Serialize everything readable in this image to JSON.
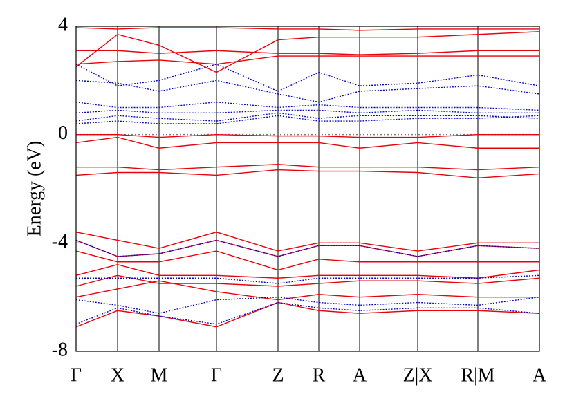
{
  "chart_data": {
    "type": "line",
    "ylabel": "Energy (eV)",
    "x": [
      0,
      0.6,
      1.2,
      2.03,
      2.92,
      3.51,
      4.1,
      4.94,
      5.81,
      6.7
    ],
    "xlim": [
      0,
      6.7
    ],
    "xticks": [
      {
        "value": 0,
        "label": "Γ"
      },
      {
        "value": 0.6,
        "label": "X"
      },
      {
        "value": 1.2,
        "label": "M"
      },
      {
        "value": 2.03,
        "label": "Γ"
      },
      {
        "value": 2.92,
        "label": "Z"
      },
      {
        "value": 3.51,
        "label": "R"
      },
      {
        "value": 4.1,
        "label": "A"
      },
      {
        "value": 4.94,
        "label": "Z|X"
      },
      {
        "value": 5.81,
        "label": "R|M"
      },
      {
        "value": 6.7,
        "label": "A"
      }
    ],
    "ylim": [
      -8,
      4
    ],
    "yticks": [
      -8,
      -4,
      0,
      4
    ],
    "grid": true,
    "hline": 0,
    "hline_color": "#808080",
    "series": [
      {
        "color": "#e8000b",
        "dashed": false,
        "values": [
          3.95,
          3.9,
          3.95,
          3.95,
          3.9,
          3.9,
          3.85,
          3.9,
          3.9,
          3.9
        ]
      },
      {
        "color": "#e8000b",
        "dashed": false,
        "values": [
          2.5,
          3.7,
          3.3,
          2.3,
          3.5,
          3.6,
          3.6,
          3.6,
          3.7,
          3.8
        ]
      },
      {
        "color": "#e8000b",
        "dashed": false,
        "values": [
          3.1,
          3.1,
          3.0,
          3.1,
          3.0,
          3.0,
          2.95,
          3.0,
          3.1,
          3.1
        ]
      },
      {
        "color": "#e8000b",
        "dashed": false,
        "values": [
          2.6,
          2.7,
          2.75,
          2.6,
          2.9,
          2.9,
          2.9,
          2.9,
          2.9,
          2.9
        ]
      },
      {
        "color": "#e8000b",
        "dashed": false,
        "values": [
          0.0,
          0.0,
          -0.1,
          0.0,
          -0.05,
          -0.05,
          -0.1,
          -0.1,
          0.0,
          0.0
        ]
      },
      {
        "color": "#e8000b",
        "dashed": false,
        "values": [
          -0.3,
          -0.1,
          -0.5,
          -0.3,
          -0.3,
          -0.3,
          -0.5,
          -0.3,
          -0.5,
          -0.5
        ]
      },
      {
        "color": "#e8000b",
        "dashed": false,
        "values": [
          -1.2,
          -1.2,
          -1.3,
          -1.2,
          -1.1,
          -1.2,
          -1.2,
          -1.2,
          -1.3,
          -1.2
        ]
      },
      {
        "color": "#e8000b",
        "dashed": false,
        "values": [
          -1.5,
          -1.4,
          -1.4,
          -1.5,
          -1.3,
          -1.35,
          -1.35,
          -1.4,
          -1.6,
          -1.45
        ]
      },
      {
        "color": "#e8000b",
        "dashed": false,
        "values": [
          -3.6,
          -3.9,
          -4.2,
          -3.6,
          -4.3,
          -4.0,
          -4.0,
          -4.3,
          -4.0,
          -4.0
        ]
      },
      {
        "color": "#e8000b",
        "dashed": false,
        "values": [
          -3.9,
          -4.5,
          -4.4,
          -3.9,
          -4.5,
          -4.1,
          -4.1,
          -4.5,
          -4.1,
          -4.2
        ]
      },
      {
        "color": "#e8000b",
        "dashed": false,
        "values": [
          -4.3,
          -4.7,
          -4.7,
          -4.3,
          -5.0,
          -4.6,
          -4.7,
          -4.7,
          -4.7,
          -4.7
        ]
      },
      {
        "color": "#e8000b",
        "dashed": false,
        "values": [
          -5.2,
          -4.8,
          -5.2,
          -5.2,
          -5.3,
          -5.2,
          -5.2,
          -5.2,
          -5.3,
          -5.0
        ]
      },
      {
        "color": "#e8000b",
        "dashed": false,
        "values": [
          -5.6,
          -5.2,
          -5.5,
          -5.5,
          -5.6,
          -5.5,
          -5.4,
          -5.4,
          -5.5,
          -5.3
        ]
      },
      {
        "color": "#e8000b",
        "dashed": false,
        "values": [
          -6.0,
          -5.7,
          -5.4,
          -5.8,
          -6.1,
          -5.9,
          -6.0,
          -5.9,
          -6.0,
          -6.0
        ]
      },
      {
        "color": "#e8000b",
        "dashed": false,
        "values": [
          -7.1,
          -6.5,
          -6.7,
          -7.1,
          -6.2,
          -6.5,
          -6.6,
          -6.5,
          -6.5,
          -6.6
        ]
      },
      {
        "color": "#0000dd",
        "dashed": true,
        "values": [
          2.6,
          1.8,
          2.0,
          2.6,
          1.6,
          2.3,
          1.8,
          1.9,
          2.2,
          1.8
        ]
      },
      {
        "color": "#0000dd",
        "dashed": true,
        "values": [
          2.0,
          1.9,
          1.6,
          2.0,
          1.5,
          1.2,
          1.6,
          1.7,
          1.8,
          1.5
        ]
      },
      {
        "color": "#0000dd",
        "dashed": true,
        "values": [
          1.2,
          1.0,
          1.0,
          1.2,
          1.0,
          1.1,
          1.0,
          1.0,
          1.0,
          0.9
        ]
      },
      {
        "color": "#0000dd",
        "dashed": true,
        "values": [
          0.8,
          0.9,
          0.8,
          0.8,
          0.9,
          0.9,
          0.8,
          0.9,
          0.8,
          0.8
        ]
      },
      {
        "color": "#0000dd",
        "dashed": true,
        "values": [
          0.5,
          0.7,
          0.6,
          0.5,
          0.8,
          0.6,
          0.7,
          0.7,
          0.7,
          0.6
        ]
      },
      {
        "color": "#0000dd",
        "dashed": true,
        "values": [
          0.4,
          0.5,
          0.4,
          0.4,
          0.7,
          0.5,
          0.5,
          0.6,
          0.6,
          0.7
        ]
      },
      {
        "color": "#0000dd",
        "dashed": true,
        "values": [
          -3.9,
          -4.5,
          -4.4,
          -3.9,
          -4.5,
          -4.1,
          -4.1,
          -4.5,
          -4.1,
          -4.2
        ]
      },
      {
        "color": "#0000dd",
        "dashed": true,
        "values": [
          -5.3,
          -5.3,
          -5.3,
          -5.3,
          -5.5,
          -5.3,
          -5.3,
          -5.3,
          -5.3,
          -5.2
        ]
      },
      {
        "color": "#0000dd",
        "dashed": true,
        "values": [
          -6.1,
          -6.3,
          -6.6,
          -6.1,
          -6.0,
          -6.2,
          -6.3,
          -6.2,
          -6.3,
          -6.0
        ]
      },
      {
        "color": "#0000dd",
        "dashed": true,
        "values": [
          -7.0,
          -6.4,
          -6.7,
          -7.0,
          -6.2,
          -6.4,
          -6.5,
          -6.4,
          -6.4,
          -6.6
        ]
      }
    ]
  }
}
